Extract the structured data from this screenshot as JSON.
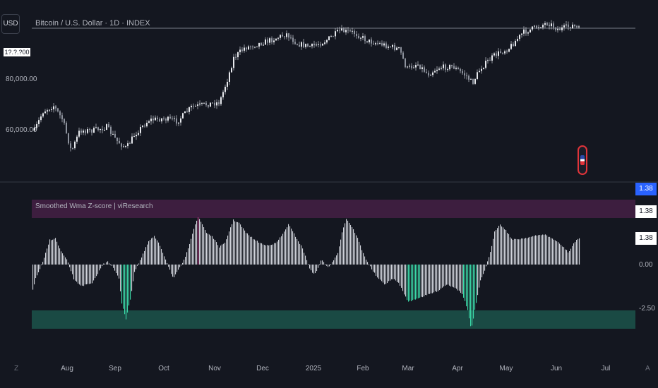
{
  "toolbar": {
    "currency_label": "USD"
  },
  "header": {
    "title": "Bitcoin / U.S. Dollar · 1D · INDEX"
  },
  "price_axis": {
    "current_badge": "1?.?.?00",
    "labels": [
      "80,000.00",
      "60,000.00"
    ]
  },
  "indicator": {
    "title": "Smoothed Wma Z-score | viResearch",
    "axis_badges": [
      "1.38",
      "1.38",
      "1.38"
    ],
    "axis_labels": [
      "0.00",
      "-2.50"
    ]
  },
  "time_axis": {
    "labels": [
      "Aug",
      "Sep",
      "Oct",
      "Nov",
      "Dec",
      "2025",
      "Feb",
      "Mar",
      "Apr",
      "May",
      "Jun",
      "Jul"
    ],
    "left_corner": "Z",
    "right_corner": "A"
  },
  "colors": {
    "background": "#141720",
    "candle": "#c8ccd4",
    "hist_neutral": "#d1d4dc",
    "hist_overbought": "#e0449a",
    "hist_oversold": "#3bd9a8",
    "overbought_zone": "#3d1e3f",
    "oversold_zone": "#1a4a44"
  },
  "icons": {
    "flag": "us-flag-icon"
  }
}
